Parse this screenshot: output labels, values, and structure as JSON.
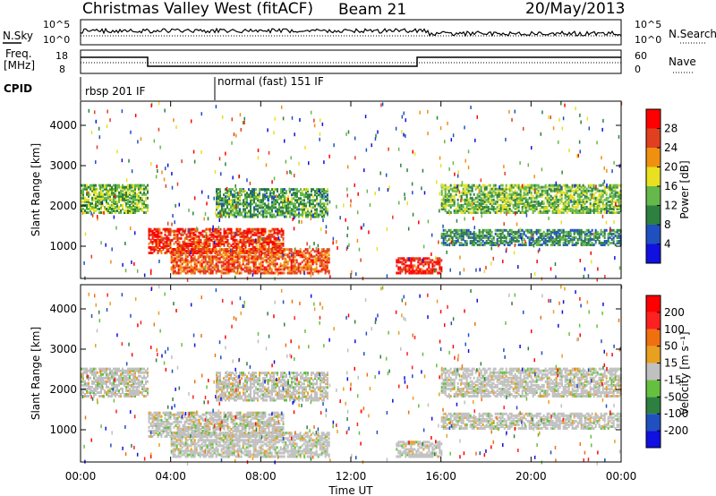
{
  "header": {
    "station": "Christmas Valley West (fitACF)",
    "beam": "Beam 21",
    "date": "20/May/2013"
  },
  "nsky_panel": {
    "left_label": "N.Sky",
    "right_label": "N.Search",
    "ticks_left": [
      "10^5",
      "10^0"
    ],
    "ticks_right": [
      "10^5",
      "10^0"
    ]
  },
  "freq_panel": {
    "left_label_1": "Freq.",
    "left_label_2": "[MHz]",
    "right_label": "Nave",
    "ticks_left": [
      "18",
      "8"
    ],
    "ticks_right": [
      "60",
      "0"
    ]
  },
  "cpid": {
    "label": "CPID",
    "modes": [
      "rbsp 201 IF",
      "normal (fast) 151 IF"
    ],
    "mode_change_hour": 6
  },
  "chart_data": [
    {
      "type": "heatmap",
      "name": "power",
      "ylabel": "Slant Range [km]",
      "ytick_labels": [
        "1000",
        "2000",
        "3000",
        "4000"
      ],
      "ylim": [
        200,
        4600
      ],
      "colorbar_label": "Power [dB]",
      "colorbar_ticks": [
        "4",
        "8",
        "12",
        "16",
        "20",
        "24",
        "28"
      ],
      "colorbar_range": [
        0,
        32
      ],
      "colors": [
        "#1010e0",
        "#2050c0",
        "#2e8040",
        "#66b84a",
        "#e8e020",
        "#f09010",
        "#e04020",
        "#ff0000"
      ],
      "bands_km": [
        {
          "hour_start": 0,
          "hour_end": 3,
          "range_low": 1800,
          "range_high": 2500,
          "power": 14
        },
        {
          "hour_start": 3,
          "hour_end": 9,
          "range_low": 800,
          "range_high": 1400,
          "power": 27
        },
        {
          "hour_start": 4,
          "hour_end": 11,
          "range_low": 300,
          "range_high": 900,
          "power": 25
        },
        {
          "hour_start": 6,
          "hour_end": 11,
          "range_low": 1700,
          "range_high": 2400,
          "power": 12
        },
        {
          "hour_start": 14,
          "hour_end": 16,
          "range_low": 300,
          "range_high": 700,
          "power": 28
        },
        {
          "hour_start": 16,
          "hour_end": 24,
          "range_low": 1800,
          "range_high": 2500,
          "power": 14
        },
        {
          "hour_start": 16,
          "hour_end": 24,
          "range_low": 1000,
          "range_high": 1400,
          "power": 10
        }
      ]
    },
    {
      "type": "heatmap",
      "name": "velocity",
      "ylabel": "Slant Range [km]",
      "ytick_labels": [
        "1000",
        "2000",
        "3000",
        "4000"
      ],
      "ylim": [
        200,
        4600
      ],
      "colorbar_label": "Velocity [m s⁻¹]",
      "colorbar_ticks": [
        "200",
        "100",
        "50",
        "15",
        "-15",
        "-50",
        "-100",
        "-200"
      ],
      "colors": [
        "#1010e0",
        "#2050c0",
        "#2e8040",
        "#66c040",
        "#c0c0c0",
        "#e8a020",
        "#f07010",
        "#ff2020",
        "#ff0000"
      ],
      "xlabel": "Time UT",
      "xtick_labels": [
        "00:00",
        "04:00",
        "08:00",
        "12:00",
        "16:00",
        "20:00",
        "00:00"
      ],
      "xlim": [
        0,
        24
      ]
    }
  ]
}
